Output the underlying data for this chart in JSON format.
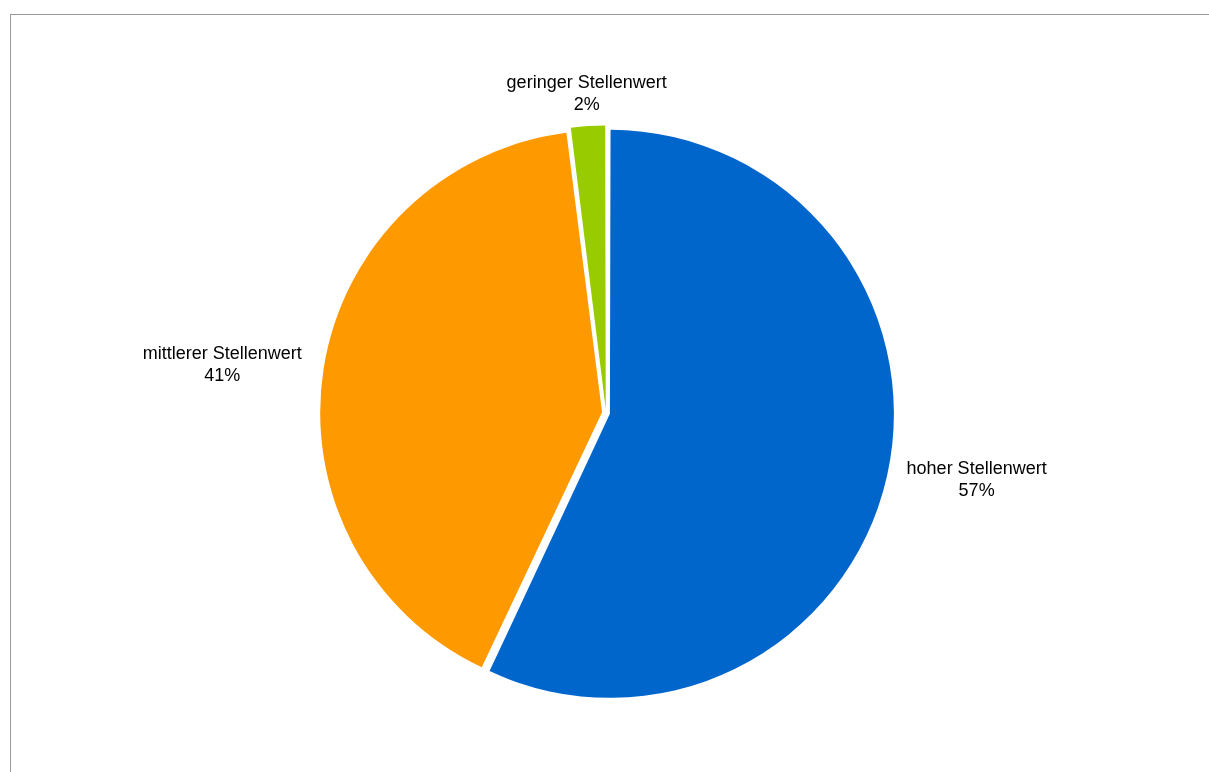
{
  "chart_data": {
    "type": "pie",
    "categories": [
      "hoher Stellenwert",
      "mittlerer Stellenwert",
      "geringer Stellenwert"
    ],
    "values": [
      57,
      41,
      2
    ],
    "colors": [
      "#0066cc",
      "#ff9900",
      "#99cc00"
    ],
    "value_labels": [
      "57%",
      "41%",
      "2%"
    ],
    "legend": false
  }
}
